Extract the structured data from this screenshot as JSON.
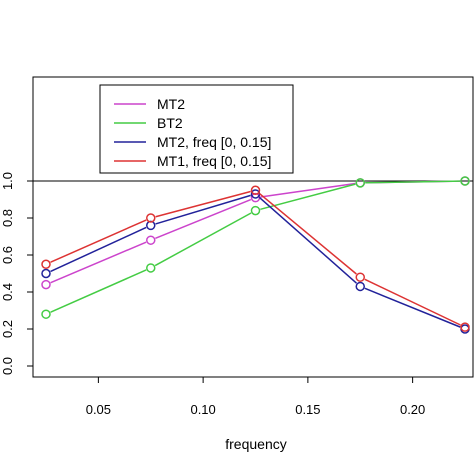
{
  "chart_data": {
    "type": "line",
    "title": "",
    "xlabel": "frequency",
    "ylabel": "",
    "xlim": [
      0.0,
      0.23
    ],
    "ylim": [
      0.0,
      1.52
    ],
    "x_ticks": [
      0.05,
      0.1,
      0.15,
      0.2
    ],
    "x_tick_labels": [
      "0.05",
      "0.10",
      "0.15",
      "0.20"
    ],
    "y_ticks": [
      0.0,
      0.2,
      0.4,
      0.6,
      0.8,
      1.0
    ],
    "y_tick_labels": [
      "0.0",
      "0.2",
      "0.4",
      "0.6",
      "0.8",
      "1.0"
    ],
    "reference_line": {
      "y": 1.0,
      "color": "#000000"
    },
    "legend": {
      "placement": "top-left"
    },
    "series": [
      {
        "name": "MT2",
        "color": "#cc44cc",
        "x": [
          0.025,
          0.075,
          0.125,
          0.175,
          0.225
        ],
        "y": [
          0.44,
          0.68,
          0.91,
          0.99,
          1.0
        ]
      },
      {
        "name": "BT2",
        "color": "#44cc44",
        "x": [
          0.025,
          0.075,
          0.125,
          0.175,
          0.225
        ],
        "y": [
          0.28,
          0.53,
          0.84,
          0.99,
          1.0
        ]
      },
      {
        "name": "MT2, freq [0, 0.15]",
        "color": "#22229a",
        "x": [
          0.025,
          0.075,
          0.125,
          0.175,
          0.225
        ],
        "y": [
          0.5,
          0.76,
          0.93,
          0.43,
          0.2
        ]
      },
      {
        "name": "MT1, freq [0, 0.15]",
        "color": "#dd3333",
        "x": [
          0.025,
          0.075,
          0.125,
          0.175,
          0.225
        ],
        "y": [
          0.55,
          0.8,
          0.95,
          0.48,
          0.21
        ]
      }
    ]
  }
}
